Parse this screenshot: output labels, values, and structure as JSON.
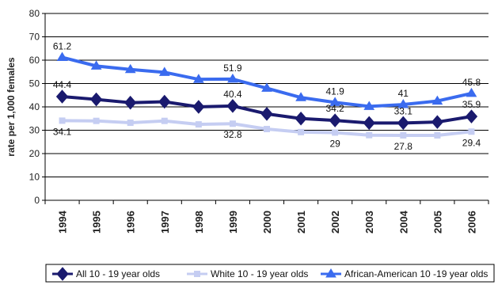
{
  "chart_data": {
    "type": "line",
    "ylabel": "rate per 1,000 females",
    "xlabel": "",
    "ylim": [
      0,
      80
    ],
    "yticks": [
      0,
      10,
      20,
      30,
      40,
      50,
      60,
      70,
      80
    ],
    "grid": true,
    "legend_position": "bottom",
    "x": [
      "1994",
      "1995",
      "1996",
      "1997",
      "1998",
      "1999",
      "2000",
      "2001",
      "2002",
      "2003",
      "2004",
      "2005",
      "2006"
    ],
    "series": [
      {
        "name": "All 10 - 19 year olds",
        "color": "#1a1a6e",
        "marker": "diamond",
        "values": [
          44.4,
          43.2,
          41.8,
          42.2,
          40.0,
          40.4,
          37.0,
          35.0,
          34.2,
          33.1,
          33.1,
          33.5,
          35.9
        ],
        "labels": [
          {
            "index": 0,
            "text": "44.4"
          },
          {
            "index": 5,
            "text": "40.4"
          },
          {
            "index": 8,
            "text": "34.2"
          },
          {
            "index": 10,
            "text": "33.1"
          },
          {
            "index": 12,
            "text": "35.9"
          }
        ]
      },
      {
        "name": "White 10 - 19 year olds",
        "color": "#c5cdf2",
        "marker": "square",
        "values": [
          34.1,
          34.0,
          33.2,
          34.0,
          32.5,
          32.8,
          30.5,
          29.2,
          29.0,
          27.9,
          27.8,
          27.8,
          29.4
        ],
        "labels": [
          {
            "index": 0,
            "text": "34.1"
          },
          {
            "index": 5,
            "text": "32.8"
          },
          {
            "index": 8,
            "text": "29"
          },
          {
            "index": 10,
            "text": "27.8"
          },
          {
            "index": 12,
            "text": "29.4"
          }
        ]
      },
      {
        "name": "African-American 10 -19 year olds",
        "color": "#3a6bef",
        "marker": "triangle",
        "values": [
          61.2,
          57.5,
          56.0,
          54.8,
          51.8,
          51.9,
          48.0,
          44.0,
          41.9,
          40.2,
          41.0,
          42.5,
          45.8
        ],
        "labels": [
          {
            "index": 0,
            "text": "61.2"
          },
          {
            "index": 5,
            "text": "51.9"
          },
          {
            "index": 8,
            "text": "41.9"
          },
          {
            "index": 10,
            "text": "41"
          },
          {
            "index": 12,
            "text": "45.8"
          }
        ]
      }
    ]
  }
}
